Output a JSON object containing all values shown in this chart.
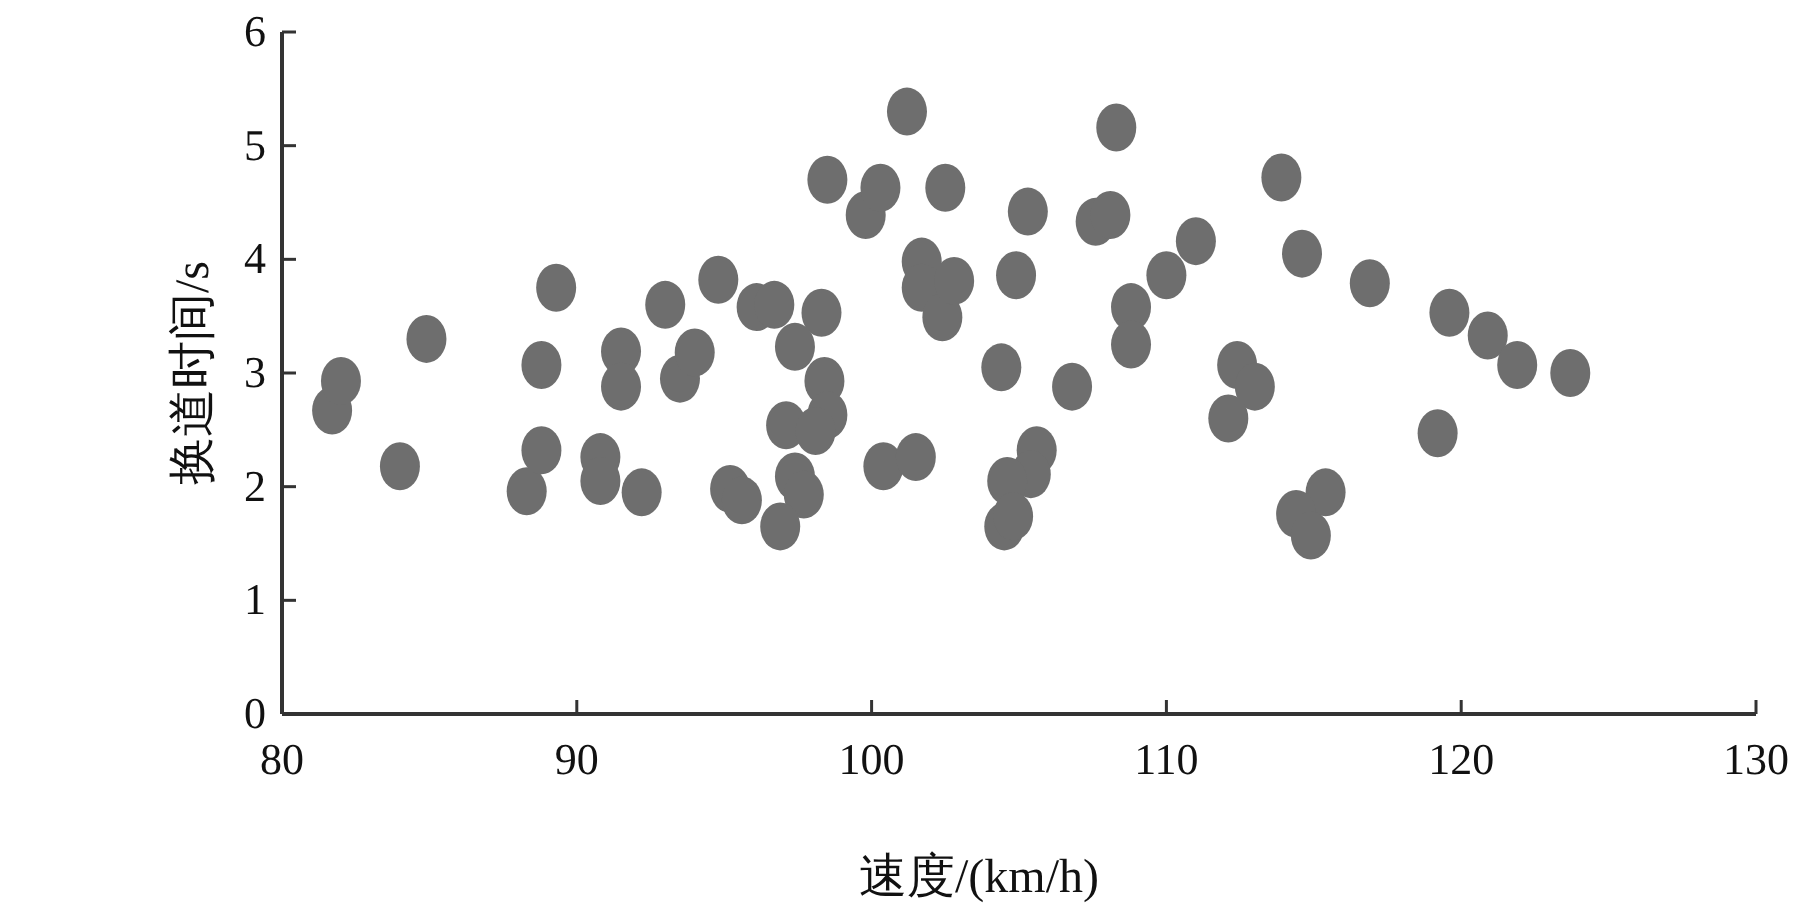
{
  "chart_data": {
    "type": "scatter",
    "xlabel": "速度/(km/h)",
    "ylabel": "换道时间/s",
    "xlim": [
      80,
      130
    ],
    "xticks": [
      80,
      90,
      100,
      110,
      120,
      130
    ],
    "ylim": [
      0,
      6
    ],
    "yticks": [
      0,
      1,
      2,
      3,
      4,
      5,
      6
    ],
    "grid": false,
    "marker": "circle",
    "series": [
      {
        "color": "#6e6e6e",
        "x": [
          81.7,
          82.0,
          84.0,
          84.9,
          88.3,
          88.8,
          88.8,
          89.3,
          90.8,
          90.8,
          91.5,
          91.5,
          92.2,
          93.0,
          93.5,
          94.0,
          94.8,
          95.2,
          95.6,
          96.1,
          96.7,
          98.3,
          97.4,
          98.4,
          98.5,
          97.1,
          98.1,
          97.4,
          97.7,
          96.9,
          98.5,
          99.8,
          100.3,
          101.2,
          102.5,
          101.7,
          101.7,
          102.4,
          102.8,
          100.4,
          101.5,
          105.3,
          104.9,
          104.4,
          106.8,
          108.3,
          107.6,
          108.1,
          108.8,
          108.8,
          110.0,
          111.0,
          105.6,
          105.4,
          104.6,
          104.5,
          104.8,
          113.9,
          114.6,
          116.9,
          119.6,
          120.9,
          121.9,
          123.7,
          119.2,
          112.4,
          113.0,
          112.1,
          115.4,
          114.4,
          114.9
        ],
        "values": [
          2.67,
          2.93,
          2.18,
          3.3,
          1.96,
          2.32,
          3.07,
          3.75,
          2.26,
          2.05,
          3.19,
          2.88,
          1.95,
          3.6,
          2.95,
          3.18,
          3.82,
          1.98,
          1.88,
          3.58,
          3.6,
          3.53,
          3.23,
          2.93,
          2.63,
          2.54,
          2.49,
          2.09,
          1.93,
          1.65,
          4.7,
          4.39,
          4.63,
          5.3,
          4.63,
          3.98,
          3.75,
          3.49,
          3.81,
          2.18,
          2.26,
          4.42,
          3.86,
          3.05,
          2.88,
          5.16,
          4.33,
          4.39,
          3.58,
          3.25,
          3.86,
          4.16,
          2.32,
          2.11,
          2.05,
          1.65,
          1.74,
          4.72,
          4.05,
          3.79,
          3.53,
          3.33,
          3.07,
          3.0,
          2.47,
          3.07,
          2.88,
          2.6,
          1.95,
          1.76,
          1.57
        ]
      }
    ]
  }
}
